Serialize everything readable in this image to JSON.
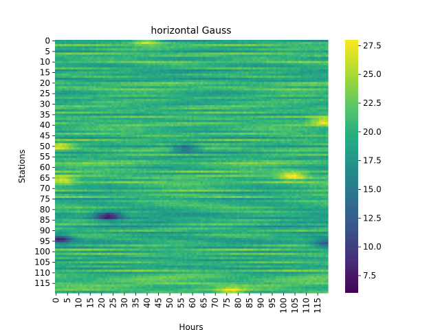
{
  "chart_data": {
    "type": "heatmap",
    "title": "horizontal Gauss",
    "xlabel": "Hours",
    "ylabel": "Stations",
    "n_rows": 120,
    "n_cols": 120,
    "x_ticks": [
      0,
      5,
      10,
      15,
      20,
      25,
      30,
      35,
      40,
      45,
      50,
      55,
      60,
      65,
      70,
      75,
      80,
      85,
      90,
      95,
      100,
      105,
      110,
      115
    ],
    "y_ticks": [
      0,
      5,
      10,
      15,
      20,
      25,
      30,
      35,
      40,
      45,
      50,
      55,
      60,
      65,
      70,
      75,
      80,
      85,
      90,
      95,
      100,
      105,
      110,
      115
    ],
    "colorbar": {
      "colormap": "viridis",
      "vmin": 6.0,
      "vmax": 28.0,
      "ticks": [
        "7.5",
        "10.0",
        "12.5",
        "15.0",
        "17.5",
        "20.0",
        "22.5",
        "25.0",
        "27.5"
      ]
    },
    "base_level": 20.0,
    "features": [
      {
        "kind": "low",
        "hour": 57,
        "station": 51,
        "value": 12.5
      },
      {
        "kind": "low",
        "hour": 23,
        "station": 83,
        "value": 8.0
      },
      {
        "kind": "low",
        "hour": 1,
        "station": 94,
        "value": 10.0
      },
      {
        "kind": "low",
        "hour": 119,
        "station": 96,
        "value": 12.0
      },
      {
        "kind": "high",
        "hour": 104,
        "station": 64,
        "value": 27.5
      },
      {
        "kind": "high",
        "hour": 40,
        "station": 0,
        "value": 26.5
      },
      {
        "kind": "high",
        "hour": 118,
        "station": 38,
        "value": 27.0
      },
      {
        "kind": "high",
        "hour": 3,
        "station": 66,
        "value": 26.0
      },
      {
        "kind": "high",
        "hour": 2,
        "station": 50,
        "value": 25.5
      },
      {
        "kind": "high",
        "hour": 77,
        "station": 119,
        "value": 26.0
      }
    ]
  }
}
